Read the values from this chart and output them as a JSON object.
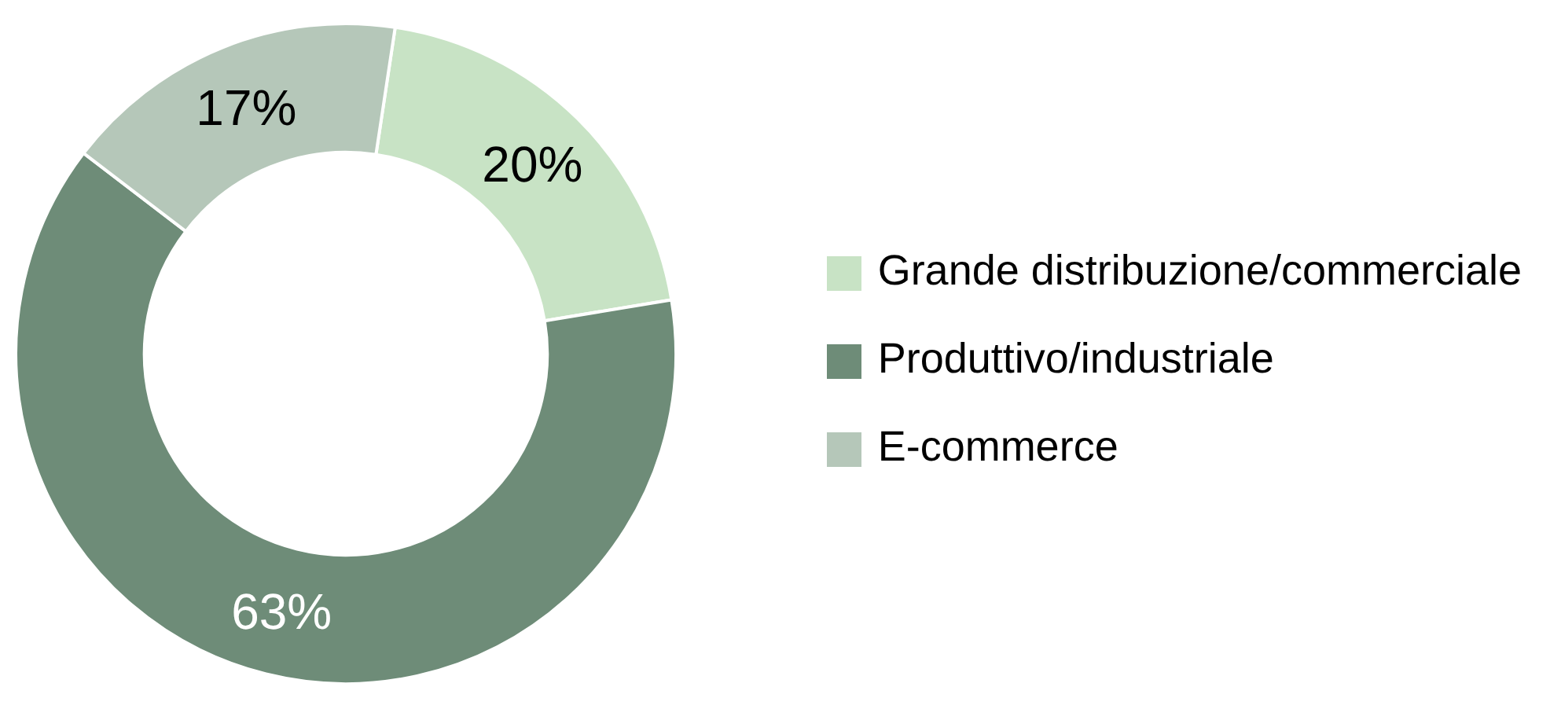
{
  "chart_data": {
    "type": "donut",
    "categories": [
      "Grande distribuzione/commerciale",
      "Produttivo/industriale",
      "E-commerce"
    ],
    "values": [
      20,
      63,
      17
    ],
    "colors": [
      "#c8e3c5",
      "#6e8c78",
      "#b5c7b9"
    ],
    "value_labels": [
      "20%",
      "63%",
      "17%"
    ],
    "legend": "right"
  }
}
